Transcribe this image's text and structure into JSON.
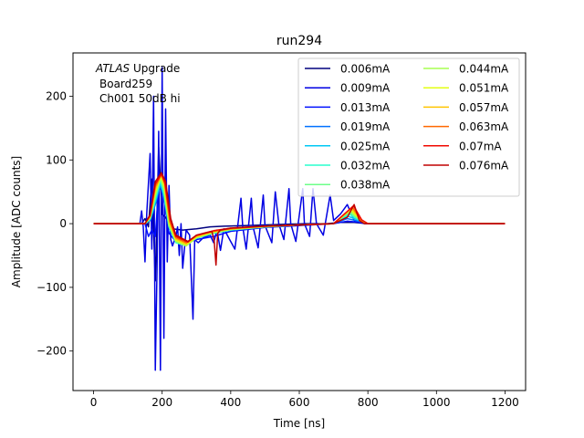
{
  "chart_data": {
    "type": "line",
    "title": "run294",
    "xlabel": "Time [ns]",
    "ylabel": "Amplitude [ADC counts]",
    "xlim": [
      -60,
      1260
    ],
    "ylim": [
      -262,
      268
    ],
    "xticks": [
      0,
      200,
      400,
      600,
      800,
      1000,
      1200
    ],
    "yticks": [
      -200,
      -100,
      0,
      100,
      200
    ],
    "grid": false,
    "legend_position": "top-right",
    "legend_columns": 2,
    "annotation": {
      "line1_italic": "ATLAS",
      "line1_rest": " Upgrade",
      "line2": "Board259",
      "line3": "Ch001 50dB hi"
    },
    "series": [
      {
        "name": "0.006mA",
        "color": "#00007f"
      },
      {
        "name": "0.009mA",
        "color": "#0000e3"
      },
      {
        "name": "0.013mA",
        "color": "#0010ff"
      },
      {
        "name": "0.019mA",
        "color": "#0070ff"
      },
      {
        "name": "0.025mA",
        "color": "#00c8f4"
      },
      {
        "name": "0.032mA",
        "color": "#29ffce"
      },
      {
        "name": "0.038mA",
        "color": "#6dff8a"
      },
      {
        "name": "0.044mA",
        "color": "#a7ff50"
      },
      {
        "name": "0.051mA",
        "color": "#e3ff13"
      },
      {
        "name": "0.057mA",
        "color": "#ffc400"
      },
      {
        "name": "0.063mA",
        "color": "#ff6800"
      },
      {
        "name": "0.07mA",
        "color": "#f10800"
      },
      {
        "name": "0.076mA",
        "color": "#c00000"
      }
    ],
    "series_points": {
      "0.006mA": [
        [
          0,
          0
        ],
        [
          140,
          0
        ],
        [
          150,
          8
        ],
        [
          160,
          -5
        ],
        [
          170,
          70
        ],
        [
          180,
          -90
        ],
        [
          190,
          120
        ],
        [
          200,
          15
        ],
        [
          210,
          10
        ],
        [
          230,
          -8
        ],
        [
          260,
          -10
        ],
        [
          300,
          -8
        ],
        [
          340,
          -5
        ],
        [
          380,
          -4
        ],
        [
          440,
          -3
        ],
        [
          500,
          -2
        ],
        [
          560,
          -1
        ],
        [
          620,
          0
        ],
        [
          680,
          0
        ],
        [
          720,
          2
        ],
        [
          760,
          2
        ],
        [
          800,
          0
        ],
        [
          1200,
          0
        ]
      ],
      "0.009mA": [
        [
          0,
          0
        ],
        [
          135,
          0
        ],
        [
          140,
          20
        ],
        [
          145,
          -5
        ],
        [
          150,
          -60
        ],
        [
          155,
          15
        ],
        [
          165,
          110
        ],
        [
          170,
          -40
        ],
        [
          175,
          200
        ],
        [
          180,
          -230
        ],
        [
          185,
          -70
        ],
        [
          190,
          145
        ],
        [
          195,
          -230
        ],
        [
          200,
          245
        ],
        [
          205,
          -180
        ],
        [
          210,
          180
        ],
        [
          215,
          -60
        ],
        [
          220,
          60
        ],
        [
          225,
          -25
        ],
        [
          230,
          -35
        ],
        [
          240,
          -20
        ],
        [
          245,
          -5
        ],
        [
          250,
          -50
        ],
        [
          255,
          0
        ],
        [
          260,
          -70
        ],
        [
          270,
          -10
        ],
        [
          280,
          -18
        ],
        [
          290,
          -150
        ],
        [
          295,
          -25
        ],
        [
          305,
          -30
        ],
        [
          320,
          -22
        ],
        [
          340,
          -18
        ],
        [
          350,
          -30
        ],
        [
          360,
          -10
        ],
        [
          370,
          -42
        ],
        [
          380,
          -8
        ],
        [
          400,
          -28
        ],
        [
          412,
          -40
        ],
        [
          420,
          -5
        ],
        [
          430,
          40
        ],
        [
          435,
          -5
        ],
        [
          445,
          -40
        ],
        [
          460,
          40
        ],
        [
          465,
          -5
        ],
        [
          480,
          -38
        ],
        [
          495,
          45
        ],
        [
          500,
          -3
        ],
        [
          520,
          -30
        ],
        [
          530,
          50
        ],
        [
          540,
          0
        ],
        [
          555,
          -25
        ],
        [
          570,
          55
        ],
        [
          575,
          0
        ],
        [
          590,
          -28
        ],
        [
          610,
          55
        ],
        [
          615,
          0
        ],
        [
          630,
          -20
        ],
        [
          640,
          55
        ],
        [
          650,
          0
        ],
        [
          670,
          -18
        ],
        [
          690,
          45
        ],
        [
          700,
          5
        ],
        [
          720,
          15
        ],
        [
          740,
          30
        ],
        [
          760,
          5
        ],
        [
          790,
          0
        ],
        [
          1200,
          0
        ]
      ],
      "0.013mA": [
        [
          0,
          0
        ],
        [
          140,
          0
        ],
        [
          150,
          0
        ],
        [
          160,
          -20
        ],
        [
          170,
          -10
        ],
        [
          180,
          -20
        ],
        [
          190,
          55
        ],
        [
          200,
          70
        ],
        [
          210,
          25
        ],
        [
          220,
          -15
        ],
        [
          240,
          -28
        ],
        [
          270,
          -30
        ],
        [
          300,
          -25
        ],
        [
          350,
          -20
        ],
        [
          400,
          -12
        ],
        [
          500,
          -6
        ],
        [
          600,
          -3
        ],
        [
          700,
          0
        ],
        [
          740,
          4
        ],
        [
          780,
          2
        ],
        [
          800,
          0
        ],
        [
          1200,
          0
        ]
      ],
      "0.019mA": [
        [
          0,
          0
        ],
        [
          150,
          0
        ],
        [
          165,
          5
        ],
        [
          180,
          30
        ],
        [
          195,
          60
        ],
        [
          205,
          40
        ],
        [
          220,
          -5
        ],
        [
          240,
          -28
        ],
        [
          260,
          -32
        ],
        [
          300,
          -22
        ],
        [
          350,
          -15
        ],
        [
          400,
          -10
        ],
        [
          500,
          -5
        ],
        [
          600,
          -2
        ],
        [
          700,
          0
        ],
        [
          740,
          8
        ],
        [
          780,
          3
        ],
        [
          800,
          0
        ],
        [
          1200,
          0
        ]
      ],
      "0.025mA": [
        [
          0,
          0
        ],
        [
          150,
          0
        ],
        [
          165,
          6
        ],
        [
          180,
          34
        ],
        [
          195,
          64
        ],
        [
          205,
          44
        ],
        [
          220,
          -5
        ],
        [
          240,
          -28
        ],
        [
          265,
          -32
        ],
        [
          300,
          -22
        ],
        [
          350,
          -15
        ],
        [
          400,
          -10
        ],
        [
          500,
          -5
        ],
        [
          600,
          -2
        ],
        [
          700,
          0
        ],
        [
          740,
          12
        ],
        [
          780,
          4
        ],
        [
          800,
          0
        ],
        [
          1200,
          0
        ]
      ],
      "0.032mA": [
        [
          0,
          0
        ],
        [
          150,
          0
        ],
        [
          165,
          7
        ],
        [
          180,
          38
        ],
        [
          195,
          68
        ],
        [
          205,
          48
        ],
        [
          220,
          -5
        ],
        [
          240,
          -30
        ],
        [
          265,
          -34
        ],
        [
          300,
          -23
        ],
        [
          350,
          -15
        ],
        [
          400,
          -10
        ],
        [
          500,
          -5
        ],
        [
          600,
          -2
        ],
        [
          700,
          0
        ],
        [
          745,
          15
        ],
        [
          780,
          4
        ],
        [
          800,
          0
        ],
        [
          1200,
          0
        ]
      ],
      "0.038mA": [
        [
          0,
          0
        ],
        [
          150,
          0
        ],
        [
          165,
          8
        ],
        [
          180,
          42
        ],
        [
          195,
          70
        ],
        [
          205,
          52
        ],
        [
          220,
          -3
        ],
        [
          240,
          -28
        ],
        [
          265,
          -34
        ],
        [
          300,
          -22
        ],
        [
          350,
          -14
        ],
        [
          400,
          -9
        ],
        [
          500,
          -5
        ],
        [
          600,
          -2
        ],
        [
          700,
          0
        ],
        [
          745,
          18
        ],
        [
          780,
          5
        ],
        [
          800,
          0
        ],
        [
          1200,
          0
        ]
      ],
      "0.044mA": [
        [
          0,
          0
        ],
        [
          150,
          0
        ],
        [
          165,
          9
        ],
        [
          180,
          46
        ],
        [
          195,
          72
        ],
        [
          205,
          56
        ],
        [
          220,
          -2
        ],
        [
          240,
          -28
        ],
        [
          270,
          -35
        ],
        [
          300,
          -22
        ],
        [
          350,
          -14
        ],
        [
          400,
          -9
        ],
        [
          500,
          -5
        ],
        [
          600,
          -2
        ],
        [
          700,
          0
        ],
        [
          748,
          20
        ],
        [
          780,
          5
        ],
        [
          800,
          0
        ],
        [
          1200,
          0
        ]
      ],
      "0.051mA": [
        [
          0,
          0
        ],
        [
          150,
          0
        ],
        [
          165,
          10
        ],
        [
          180,
          50
        ],
        [
          197,
          74
        ],
        [
          207,
          58
        ],
        [
          222,
          0
        ],
        [
          240,
          -26
        ],
        [
          270,
          -33
        ],
        [
          300,
          -21
        ],
        [
          350,
          -13
        ],
        [
          400,
          -9
        ],
        [
          500,
          -4
        ],
        [
          600,
          -2
        ],
        [
          700,
          0
        ],
        [
          750,
          22
        ],
        [
          780,
          5
        ],
        [
          800,
          0
        ],
        [
          1200,
          0
        ]
      ],
      "0.057mA": [
        [
          0,
          0
        ],
        [
          150,
          0
        ],
        [
          165,
          11
        ],
        [
          180,
          54
        ],
        [
          197,
          76
        ],
        [
          207,
          60
        ],
        [
          222,
          2
        ],
        [
          240,
          -24
        ],
        [
          270,
          -32
        ],
        [
          300,
          -20
        ],
        [
          350,
          -12
        ],
        [
          400,
          -8
        ],
        [
          500,
          -4
        ],
        [
          600,
          -2
        ],
        [
          700,
          0
        ],
        [
          752,
          24
        ],
        [
          780,
          6
        ],
        [
          800,
          0
        ],
        [
          1200,
          0
        ]
      ],
      "0.063mA": [
        [
          0,
          0
        ],
        [
          150,
          0
        ],
        [
          165,
          12
        ],
        [
          180,
          58
        ],
        [
          198,
          77
        ],
        [
          208,
          62
        ],
        [
          222,
          4
        ],
        [
          240,
          -22
        ],
        [
          270,
          -30
        ],
        [
          300,
          -19
        ],
        [
          350,
          -12
        ],
        [
          400,
          -8
        ],
        [
          500,
          -4
        ],
        [
          600,
          -2
        ],
        [
          700,
          0
        ],
        [
          755,
          26
        ],
        [
          780,
          6
        ],
        [
          800,
          0
        ],
        [
          1200,
          0
        ]
      ],
      "0.07mA": [
        [
          0,
          0
        ],
        [
          150,
          0
        ],
        [
          165,
          13
        ],
        [
          180,
          62
        ],
        [
          198,
          78
        ],
        [
          208,
          64
        ],
        [
          224,
          6
        ],
        [
          240,
          -20
        ],
        [
          275,
          -29
        ],
        [
          300,
          -18
        ],
        [
          350,
          -11
        ],
        [
          400,
          -7
        ],
        [
          500,
          -4
        ],
        [
          600,
          -2
        ],
        [
          700,
          0
        ],
        [
          758,
          28
        ],
        [
          782,
          6
        ],
        [
          800,
          0
        ],
        [
          1200,
          0
        ]
      ],
      "0.076mA": [
        [
          0,
          0
        ],
        [
          150,
          0
        ],
        [
          165,
          14
        ],
        [
          180,
          66
        ],
        [
          198,
          80
        ],
        [
          210,
          66
        ],
        [
          225,
          8
        ],
        [
          240,
          -18
        ],
        [
          275,
          -28
        ],
        [
          300,
          -18
        ],
        [
          345,
          -12
        ],
        [
          352,
          -28
        ],
        [
          357,
          -65
        ],
        [
          362,
          -15
        ],
        [
          370,
          -10
        ],
        [
          400,
          -7
        ],
        [
          500,
          -4
        ],
        [
          600,
          -2
        ],
        [
          700,
          0
        ],
        [
          740,
          10
        ],
        [
          760,
          30
        ],
        [
          775,
          5
        ],
        [
          790,
          0
        ],
        [
          1200,
          0
        ]
      ]
    }
  }
}
